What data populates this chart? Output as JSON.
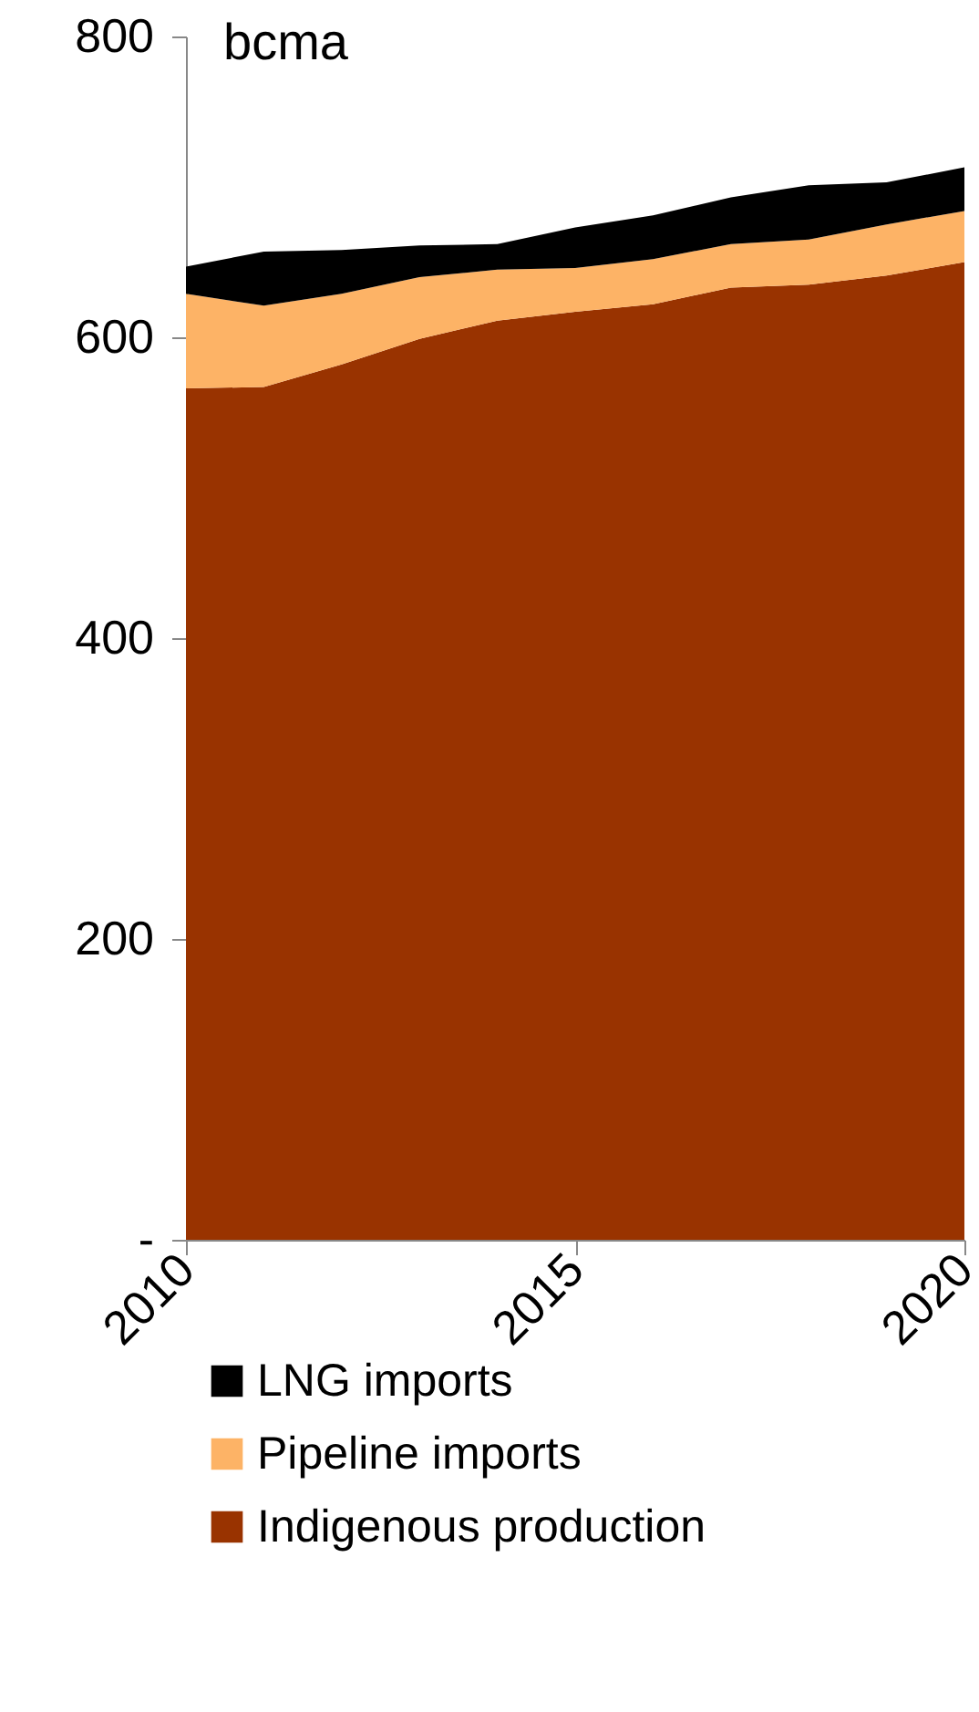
{
  "chart_data": {
    "type": "area",
    "stacked": true,
    "ylabel": "bcma",
    "x": [
      2010,
      2011,
      2012,
      2013,
      2014,
      2015,
      2016,
      2017,
      2018,
      2019,
      2020
    ],
    "series": [
      {
        "name": "Indigenous production",
        "color": "#993300",
        "values": [
          566,
          567,
          582,
          599,
          611,
          617,
          622,
          633,
          635,
          641,
          650
        ]
      },
      {
        "name": "Pipeline imports",
        "color": "#fdb366",
        "values": [
          63,
          54,
          47,
          41,
          34,
          29,
          30,
          29,
          30,
          34,
          34
        ]
      },
      {
        "name": "LNG imports",
        "color": "#000000",
        "values": [
          18,
          36,
          29,
          21,
          17,
          27,
          29,
          31,
          36,
          28,
          29
        ]
      }
    ],
    "xlim": [
      2010,
      2020
    ],
    "xticks": [
      2010,
      2015,
      2020
    ],
    "ylim": [
      0,
      800
    ],
    "yticks": [
      {
        "value": 0,
        "label": "-"
      },
      200,
      400,
      600,
      800
    ],
    "grid": false,
    "legend": "bottom"
  }
}
